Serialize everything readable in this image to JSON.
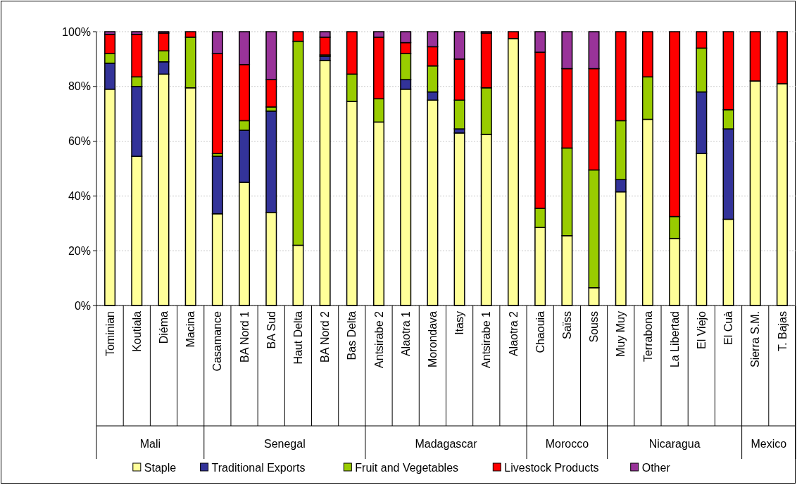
{
  "chart_data": {
    "type": "bar",
    "stacked": true,
    "grid": "y",
    "legend": "bottom",
    "categories": [
      "Tominian",
      "Koutiala",
      "Diéma",
      "Macina",
      "Casamance",
      "BA Nord 1",
      "BA Sud",
      "Haut Delta",
      "BA Nord 2",
      "Bas Delta",
      "Antsirabe 2",
      "Alaotra 1",
      "Morondava",
      "Itasy",
      "Antsirabe 1",
      "Alaotra 2",
      "Chaouia",
      "Saïss",
      "Souss",
      "Muy Muy",
      "Terrabona",
      "La Libertad",
      "El Viejo",
      "El Cuà",
      "Sierra S.M.",
      "T. Bajas"
    ],
    "ylim": [
      0,
      100
    ],
    "yticks": [
      {
        "value": 0,
        "label": "0%"
      },
      {
        "value": 20,
        "label": "20%"
      },
      {
        "value": 40,
        "label": "40%"
      },
      {
        "value": 60,
        "label": "60%"
      },
      {
        "value": 80,
        "label": "80%"
      },
      {
        "value": 100,
        "label": "100%"
      }
    ],
    "series": [
      {
        "name": "Staple",
        "color": "#ffff99",
        "values": [
          79,
          54.5,
          84.5,
          79.5,
          33.5,
          45,
          34,
          22,
          89.5,
          74.5,
          67,
          79,
          75,
          63,
          62.5,
          97.5,
          28.5,
          25.5,
          6.5,
          41.5,
          68,
          24.5,
          55.5,
          31.5,
          82,
          81
        ]
      },
      {
        "name": "Traditional Exports",
        "color": "#333399",
        "values": [
          9.5,
          25.5,
          4.5,
          0,
          21,
          19,
          37,
          0,
          1.5,
          0,
          0,
          3.5,
          3,
          1.5,
          0,
          0,
          0,
          0,
          0,
          4.5,
          0,
          0,
          22.5,
          33,
          0,
          0
        ]
      },
      {
        "name": "Fruit and Vegetables",
        "color": "#99cc00",
        "values": [
          3.5,
          3.5,
          4,
          18.5,
          1,
          3.5,
          1.5,
          74.5,
          0.5,
          10,
          8.5,
          9.5,
          9.5,
          10.5,
          17,
          0,
          7,
          32,
          43,
          21.5,
          15.5,
          8,
          16,
          7,
          0,
          0
        ]
      },
      {
        "name": "Livestock Products",
        "color": "#ff0000",
        "values": [
          7,
          15.5,
          6.5,
          2,
          36.5,
          20.5,
          10,
          3.5,
          6.5,
          15.5,
          22.5,
          4,
          7,
          15,
          20,
          2.5,
          57,
          29,
          37,
          32.5,
          16.5,
          67.5,
          6,
          28.5,
          18,
          19
        ]
      },
      {
        "name": "Other",
        "color": "#993399",
        "values": [
          1,
          1,
          0.5,
          0,
          8,
          12,
          17.5,
          0,
          2,
          0,
          2,
          4,
          5.5,
          10,
          0.5,
          0,
          7.5,
          13.5,
          13.5,
          0,
          0,
          0,
          0,
          0,
          0,
          0
        ]
      }
    ],
    "annotations": [
      "Mali",
      "Senegal",
      "Madagascar",
      "Morocco",
      "Nicaragua",
      "Mexico"
    ]
  }
}
